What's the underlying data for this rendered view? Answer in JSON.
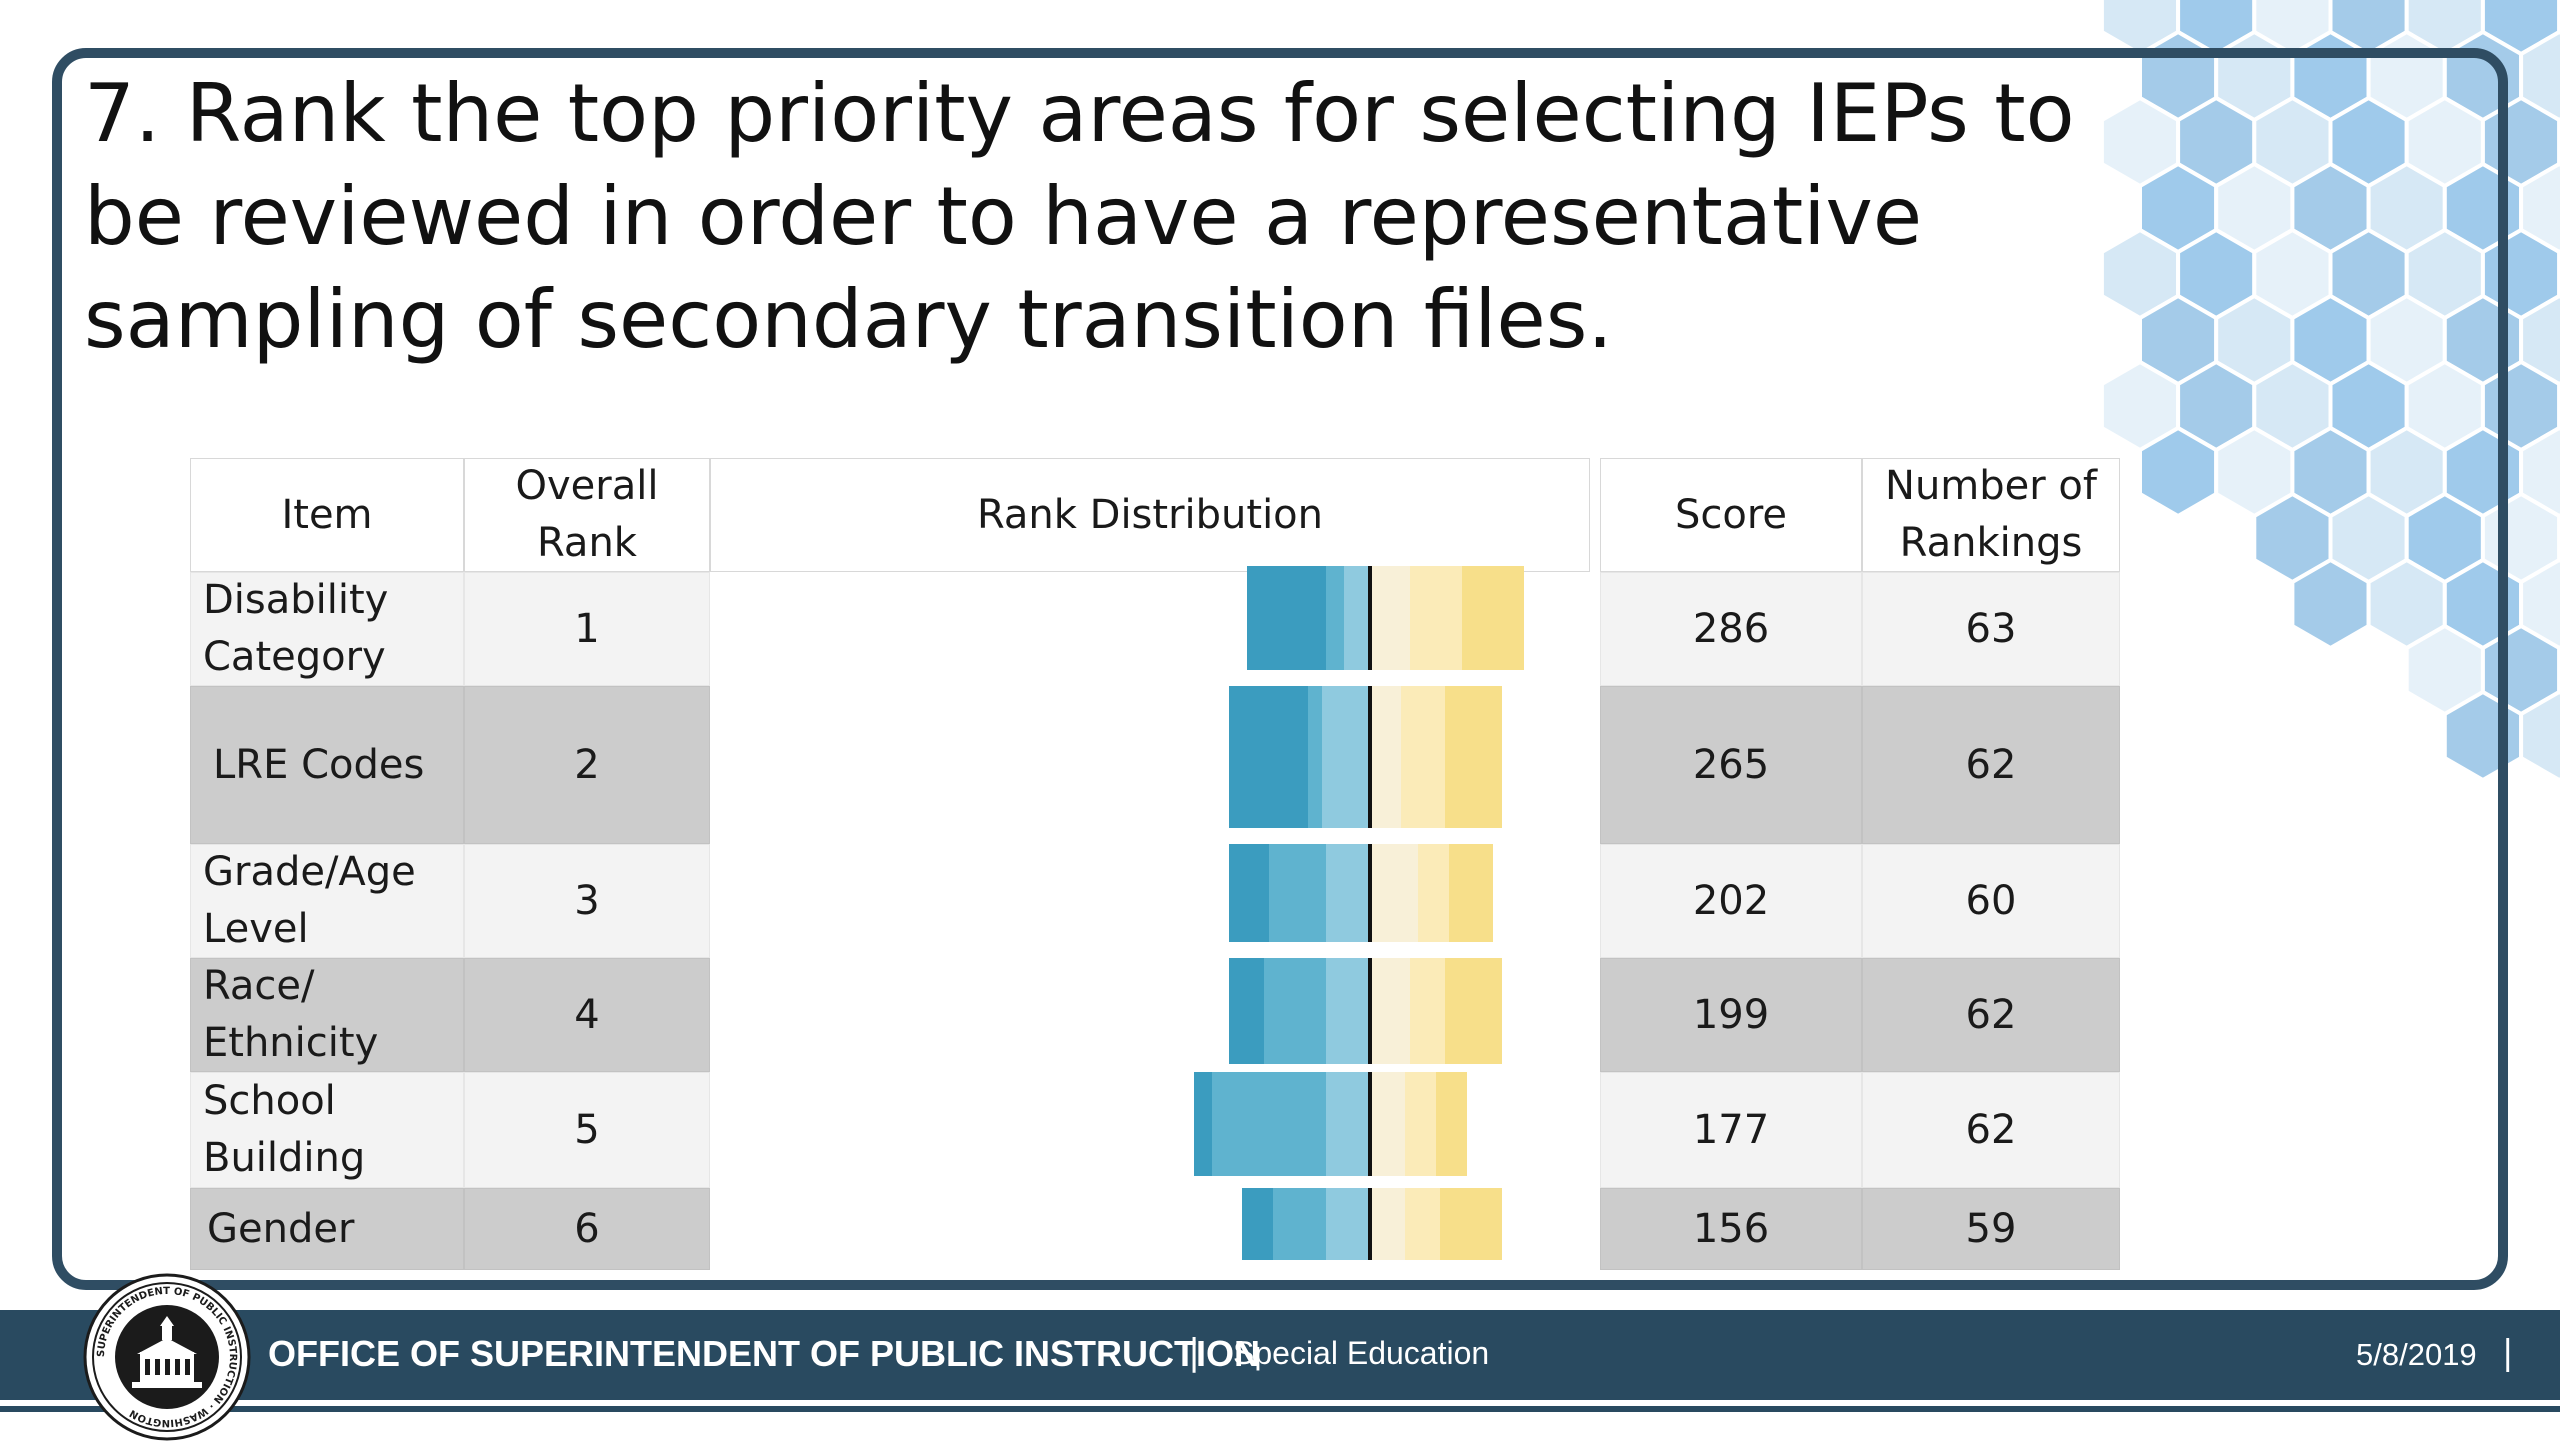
{
  "title": "7. Rank the top priority areas for selecting IEPs to be reviewed in order to have a representative sampling of secondary transition files.",
  "table": {
    "headers": {
      "item": "Item",
      "overall_rank": "Overall Rank",
      "rank_distribution": "Rank Distribution",
      "score": "Score",
      "number_of_rankings": "Number of Rankings"
    },
    "rows": [
      {
        "item": "Disability Category",
        "rank": "1",
        "score": "286",
        "count": "63"
      },
      {
        "item": "LRE Codes",
        "rank": "2",
        "score": "265",
        "count": "62"
      },
      {
        "item": "Grade/Age Level",
        "rank": "3",
        "score": "202",
        "count": "60"
      },
      {
        "item": "Race/ Ethnicity",
        "rank": "4",
        "score": "199",
        "count": "62"
      },
      {
        "item": "School Building",
        "rank": "5",
        "score": "177",
        "count": "62"
      },
      {
        "item": "Gender",
        "rank": "6",
        "score": "156",
        "count": "59"
      }
    ]
  },
  "chart_data": {
    "type": "bar",
    "stacked": true,
    "diverging": true,
    "categories": [
      "Disability Category",
      "LRE Codes",
      "Grade/Age Level",
      "Race/ Ethnicity",
      "School Building",
      "Gender"
    ],
    "series": [
      {
        "values": [
          9,
          7,
          11,
          9,
          8,
          8
        ]
      },
      {
        "values": [
          12,
          10,
          7,
          8,
          7,
          8
        ]
      },
      {
        "values": [
          14,
          13,
          10,
          13,
          7,
          14
        ]
      },
      {
        "values": [
          6,
          11,
          10,
          10,
          10,
          10
        ]
      },
      {
        "values": [
          4,
          3,
          13,
          14,
          26,
          12
        ]
      },
      {
        "values": [
          18,
          18,
          9,
          8,
          4,
          7
        ]
      }
    ],
    "negative_series_count": 3,
    "colors": [
      "#f8f0d8",
      "#fbebb8",
      "#f7df8a",
      "#8fcadf",
      "#5fb3cf",
      "#3b9cbf"
    ]
  },
  "footer": {
    "office": "OFFICE OF SUPERINTENDENT OF PUBLIC INSTRUCTION",
    "separator": "|",
    "department": "Special Education",
    "date": "5/8/2019",
    "trailing_separator": "|",
    "seal_text": "SUPERINTENDENT OF PUBLIC INSTRUCTION · WASHINGTON"
  },
  "colors": {
    "frame": "#2f4d63",
    "footer": "#294a60",
    "row_light": "#f3f3f3",
    "row_dark": "#cccccc"
  }
}
